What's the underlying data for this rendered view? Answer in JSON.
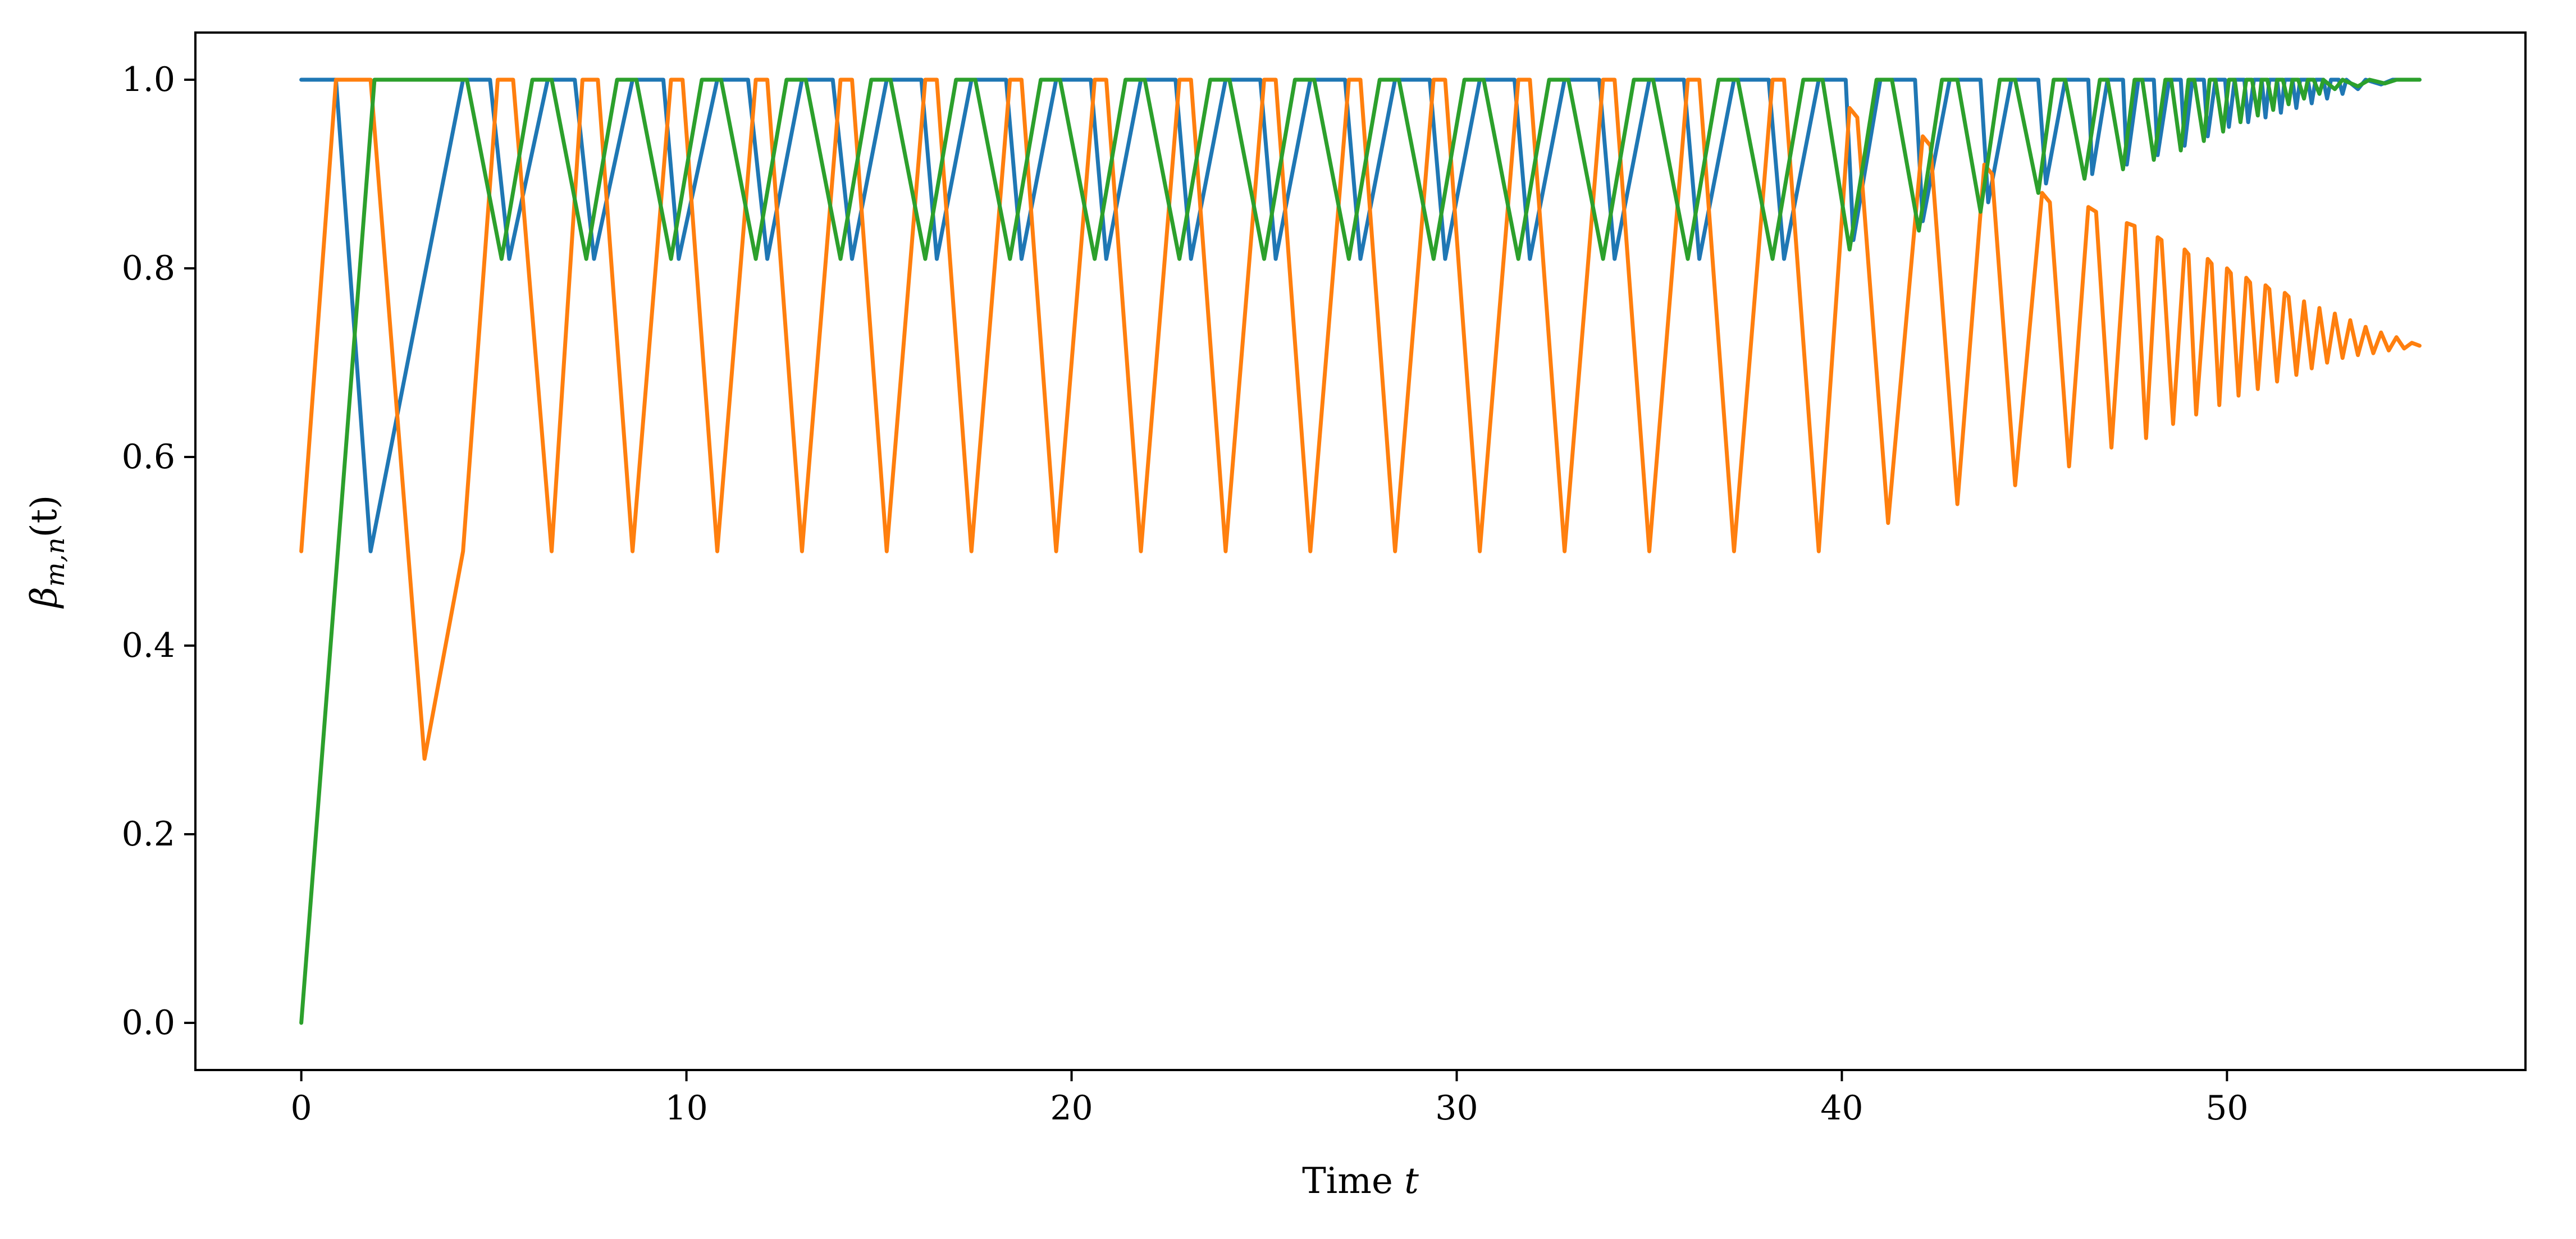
{
  "chart_data": {
    "type": "line",
    "title": "",
    "xlabel": "Time",
    "xlabel_var": "t",
    "ylabel": "β",
    "ylabel_sub": "m,n",
    "ylabel_arg": "(t)",
    "xlim": [
      -2.75,
      57.75
    ],
    "ylim": [
      -0.05,
      1.05
    ],
    "xticks": [
      0,
      10,
      20,
      30,
      40,
      50
    ],
    "xtick_labels": [
      "0",
      "10",
      "20",
      "30",
      "40",
      "50"
    ],
    "yticks": [
      0.0,
      0.2,
      0.4,
      0.6,
      0.8,
      1.0
    ],
    "ytick_labels": [
      "0.0",
      "0.2",
      "0.4",
      "0.6",
      "0.8",
      "1.0"
    ],
    "grid": false,
    "legend": "none",
    "series": [
      {
        "color": "#1f77b4",
        "points": [
          [
            0,
            1
          ],
          [
            0.9,
            1
          ],
          [
            1.8,
            0.5
          ],
          [
            4.2,
            1
          ],
          [
            4.9,
            1
          ],
          [
            5.4,
            0.81
          ],
          [
            6.4,
            1
          ],
          [
            7.1,
            1
          ],
          [
            7.6,
            0.81
          ],
          [
            8.6,
            1
          ],
          [
            9.4,
            1
          ],
          [
            9.8,
            0.81
          ],
          [
            10.8,
            1
          ],
          [
            11.6,
            1
          ],
          [
            12.1,
            0.81
          ],
          [
            13.0,
            1
          ],
          [
            13.8,
            1
          ],
          [
            14.3,
            0.81
          ],
          [
            15.2,
            1
          ],
          [
            16.1,
            1
          ],
          [
            16.5,
            0.81
          ],
          [
            17.4,
            1
          ],
          [
            18.3,
            1
          ],
          [
            18.7,
            0.81
          ],
          [
            19.6,
            1
          ],
          [
            20.5,
            1
          ],
          [
            20.9,
            0.81
          ],
          [
            21.8,
            1
          ],
          [
            22.7,
            1
          ],
          [
            23.1,
            0.81
          ],
          [
            24.0,
            1
          ],
          [
            24.9,
            1
          ],
          [
            25.3,
            0.81
          ],
          [
            26.2,
            1
          ],
          [
            27.1,
            1
          ],
          [
            27.5,
            0.81
          ],
          [
            28.4,
            1
          ],
          [
            29.3,
            1
          ],
          [
            29.7,
            0.81
          ],
          [
            30.6,
            1
          ],
          [
            31.5,
            1
          ],
          [
            31.9,
            0.81
          ],
          [
            32.8,
            1
          ],
          [
            33.7,
            1
          ],
          [
            34.1,
            0.81
          ],
          [
            35.0,
            1
          ],
          [
            35.9,
            1
          ],
          [
            36.3,
            0.81
          ],
          [
            37.2,
            1
          ],
          [
            38.1,
            1
          ],
          [
            38.5,
            0.81
          ],
          [
            39.4,
            1
          ],
          [
            40.1,
            1
          ],
          [
            40.3,
            0.83
          ],
          [
            41.0,
            1
          ],
          [
            41.9,
            1
          ],
          [
            42.1,
            0.85
          ],
          [
            42.8,
            1
          ],
          [
            43.6,
            1
          ],
          [
            43.8,
            0.87
          ],
          [
            44.4,
            1
          ],
          [
            45.1,
            1
          ],
          [
            45.3,
            0.89
          ],
          [
            45.8,
            1
          ],
          [
            46.4,
            1
          ],
          [
            46.5,
            0.9
          ],
          [
            46.9,
            1
          ],
          [
            47.3,
            1
          ],
          [
            47.4,
            0.91
          ],
          [
            47.7,
            1
          ],
          [
            48.1,
            1
          ],
          [
            48.2,
            0.92
          ],
          [
            48.5,
            1
          ],
          [
            48.8,
            1
          ],
          [
            48.9,
            0.93
          ],
          [
            49.1,
            1
          ],
          [
            49.4,
            1
          ],
          [
            49.5,
            0.94
          ],
          [
            49.7,
            1
          ],
          [
            49.95,
            1
          ],
          [
            50.05,
            0.95
          ],
          [
            50.2,
            1
          ],
          [
            50.45,
            1
          ],
          [
            50.55,
            0.955
          ],
          [
            50.7,
            1
          ],
          [
            50.9,
            1
          ],
          [
            51.0,
            0.96
          ],
          [
            51.1,
            1
          ],
          [
            51.3,
            1
          ],
          [
            51.4,
            0.965
          ],
          [
            51.5,
            1
          ],
          [
            51.7,
            1
          ],
          [
            51.8,
            0.97
          ],
          [
            51.9,
            1
          ],
          [
            52.1,
            1
          ],
          [
            52.2,
            0.975
          ],
          [
            52.3,
            1
          ],
          [
            52.5,
            1
          ],
          [
            52.6,
            0.98
          ],
          [
            52.7,
            1
          ],
          [
            52.9,
            1
          ],
          [
            53.0,
            0.985
          ],
          [
            53.1,
            1
          ],
          [
            53.4,
            0.99
          ],
          [
            53.6,
            1
          ],
          [
            54.0,
            0.995
          ],
          [
            54.3,
            1
          ],
          [
            55,
            1
          ]
        ]
      },
      {
        "color": "#ff7f0e",
        "points": [
          [
            0,
            0.5
          ],
          [
            0.9,
            1
          ],
          [
            1.8,
            1
          ],
          [
            3.2,
            0.28
          ],
          [
            4.2,
            0.5
          ],
          [
            5.1,
            1
          ],
          [
            5.5,
            1
          ],
          [
            6.5,
            0.5
          ],
          [
            7.3,
            1
          ],
          [
            7.7,
            1
          ],
          [
            8.6,
            0.5
          ],
          [
            9.6,
            1
          ],
          [
            9.9,
            1
          ],
          [
            10.8,
            0.5
          ],
          [
            11.8,
            1
          ],
          [
            12.1,
            1
          ],
          [
            13.0,
            0.5
          ],
          [
            14.0,
            1
          ],
          [
            14.3,
            1
          ],
          [
            15.2,
            0.5
          ],
          [
            16.2,
            1
          ],
          [
            16.5,
            1
          ],
          [
            17.4,
            0.5
          ],
          [
            18.4,
            1
          ],
          [
            18.7,
            1
          ],
          [
            19.6,
            0.5
          ],
          [
            20.6,
            1
          ],
          [
            20.9,
            1
          ],
          [
            21.8,
            0.5
          ],
          [
            22.8,
            1
          ],
          [
            23.1,
            1
          ],
          [
            24.0,
            0.5
          ],
          [
            25.0,
            1
          ],
          [
            25.3,
            1
          ],
          [
            26.2,
            0.5
          ],
          [
            27.2,
            1
          ],
          [
            27.5,
            1
          ],
          [
            28.4,
            0.5
          ],
          [
            29.4,
            1
          ],
          [
            29.7,
            1
          ],
          [
            30.6,
            0.5
          ],
          [
            31.6,
            1
          ],
          [
            31.9,
            1
          ],
          [
            32.8,
            0.5
          ],
          [
            33.8,
            1
          ],
          [
            34.1,
            1
          ],
          [
            35.0,
            0.5
          ],
          [
            36.0,
            1
          ],
          [
            36.3,
            1
          ],
          [
            37.2,
            0.5
          ],
          [
            38.2,
            1
          ],
          [
            38.5,
            1
          ],
          [
            39.4,
            0.5
          ],
          [
            40.2,
            0.97
          ],
          [
            40.4,
            0.96
          ],
          [
            41.2,
            0.53
          ],
          [
            42.1,
            0.94
          ],
          [
            42.3,
            0.93
          ],
          [
            43.0,
            0.55
          ],
          [
            43.7,
            0.91
          ],
          [
            43.9,
            0.9
          ],
          [
            44.5,
            0.57
          ],
          [
            45.2,
            0.88
          ],
          [
            45.4,
            0.87
          ],
          [
            45.9,
            0.59
          ],
          [
            46.4,
            0.865
          ],
          [
            46.6,
            0.86
          ],
          [
            47.0,
            0.61
          ],
          [
            47.4,
            0.848
          ],
          [
            47.6,
            0.845
          ],
          [
            47.9,
            0.62
          ],
          [
            48.2,
            0.833
          ],
          [
            48.3,
            0.83
          ],
          [
            48.6,
            0.635
          ],
          [
            48.9,
            0.82
          ],
          [
            49.0,
            0.815
          ],
          [
            49.2,
            0.645
          ],
          [
            49.5,
            0.81
          ],
          [
            49.6,
            0.805
          ],
          [
            49.8,
            0.655
          ],
          [
            50.0,
            0.8
          ],
          [
            50.1,
            0.795
          ],
          [
            50.3,
            0.665
          ],
          [
            50.5,
            0.79
          ],
          [
            50.6,
            0.785
          ],
          [
            50.8,
            0.672
          ],
          [
            51.0,
            0.782
          ],
          [
            51.1,
            0.778
          ],
          [
            51.3,
            0.68
          ],
          [
            51.5,
            0.774
          ],
          [
            51.6,
            0.77
          ],
          [
            51.8,
            0.687
          ],
          [
            52.0,
            0.765
          ],
          [
            52.2,
            0.694
          ],
          [
            52.4,
            0.758
          ],
          [
            52.6,
            0.7
          ],
          [
            52.8,
            0.752
          ],
          [
            53.0,
            0.705
          ],
          [
            53.2,
            0.745
          ],
          [
            53.4,
            0.708
          ],
          [
            53.6,
            0.738
          ],
          [
            53.8,
            0.71
          ],
          [
            54.0,
            0.732
          ],
          [
            54.2,
            0.713
          ],
          [
            54.4,
            0.727
          ],
          [
            54.6,
            0.715
          ],
          [
            54.8,
            0.721
          ],
          [
            55,
            0.718
          ]
        ]
      },
      {
        "color": "#2ca02c",
        "points": [
          [
            0,
            0
          ],
          [
            1.9,
            1
          ],
          [
            4.3,
            1
          ],
          [
            5.2,
            0.81
          ],
          [
            6.0,
            1
          ],
          [
            6.5,
            1
          ],
          [
            7.4,
            0.81
          ],
          [
            8.2,
            1
          ],
          [
            8.7,
            1
          ],
          [
            9.6,
            0.81
          ],
          [
            10.4,
            1
          ],
          [
            10.9,
            1
          ],
          [
            11.8,
            0.81
          ],
          [
            12.6,
            1
          ],
          [
            13.1,
            1
          ],
          [
            14.0,
            0.81
          ],
          [
            14.8,
            1
          ],
          [
            15.3,
            1
          ],
          [
            16.2,
            0.81
          ],
          [
            17.0,
            1
          ],
          [
            17.5,
            1
          ],
          [
            18.4,
            0.81
          ],
          [
            19.2,
            1
          ],
          [
            19.7,
            1
          ],
          [
            20.6,
            0.81
          ],
          [
            21.4,
            1
          ],
          [
            21.9,
            1
          ],
          [
            22.8,
            0.81
          ],
          [
            23.6,
            1
          ],
          [
            24.1,
            1
          ],
          [
            25.0,
            0.81
          ],
          [
            25.8,
            1
          ],
          [
            26.3,
            1
          ],
          [
            27.2,
            0.81
          ],
          [
            28.0,
            1
          ],
          [
            28.5,
            1
          ],
          [
            29.4,
            0.81
          ],
          [
            30.2,
            1
          ],
          [
            30.7,
            1
          ],
          [
            31.6,
            0.81
          ],
          [
            32.4,
            1
          ],
          [
            32.9,
            1
          ],
          [
            33.8,
            0.81
          ],
          [
            34.6,
            1
          ],
          [
            35.1,
            1
          ],
          [
            36.0,
            0.81
          ],
          [
            36.8,
            1
          ],
          [
            37.3,
            1
          ],
          [
            38.2,
            0.81
          ],
          [
            39.0,
            1
          ],
          [
            39.5,
            1
          ],
          [
            40.2,
            0.82
          ],
          [
            40.9,
            1
          ],
          [
            41.3,
            1
          ],
          [
            42.0,
            0.84
          ],
          [
            42.6,
            1
          ],
          [
            43.0,
            1
          ],
          [
            43.6,
            0.86
          ],
          [
            44.1,
            1
          ],
          [
            44.5,
            1
          ],
          [
            45.1,
            0.88
          ],
          [
            45.5,
            1
          ],
          [
            45.8,
            1
          ],
          [
            46.3,
            0.895
          ],
          [
            46.7,
            1
          ],
          [
            46.9,
            1
          ],
          [
            47.3,
            0.905
          ],
          [
            47.6,
            1
          ],
          [
            47.8,
            1
          ],
          [
            48.1,
            0.915
          ],
          [
            48.4,
            1
          ],
          [
            48.55,
            1
          ],
          [
            48.8,
            0.925
          ],
          [
            49.0,
            1
          ],
          [
            49.15,
            1
          ],
          [
            49.4,
            0.935
          ],
          [
            49.55,
            1
          ],
          [
            49.7,
            1
          ],
          [
            49.9,
            0.945
          ],
          [
            50.05,
            1
          ],
          [
            50.2,
            1
          ],
          [
            50.35,
            0.955
          ],
          [
            50.5,
            1
          ],
          [
            50.65,
            1
          ],
          [
            50.8,
            0.962
          ],
          [
            50.9,
            1
          ],
          [
            51.05,
            1
          ],
          [
            51.2,
            0.968
          ],
          [
            51.3,
            1
          ],
          [
            51.45,
            1
          ],
          [
            51.6,
            0.974
          ],
          [
            51.7,
            1
          ],
          [
            51.85,
            1
          ],
          [
            52.0,
            0.98
          ],
          [
            52.1,
            1
          ],
          [
            52.25,
            1
          ],
          [
            52.4,
            0.985
          ],
          [
            52.5,
            1
          ],
          [
            52.8,
            0.99
          ],
          [
            53.0,
            1
          ],
          [
            53.4,
            0.993
          ],
          [
            53.7,
            1
          ],
          [
            54.1,
            0.996
          ],
          [
            54.4,
            1
          ],
          [
            55,
            1
          ]
        ]
      }
    ]
  }
}
